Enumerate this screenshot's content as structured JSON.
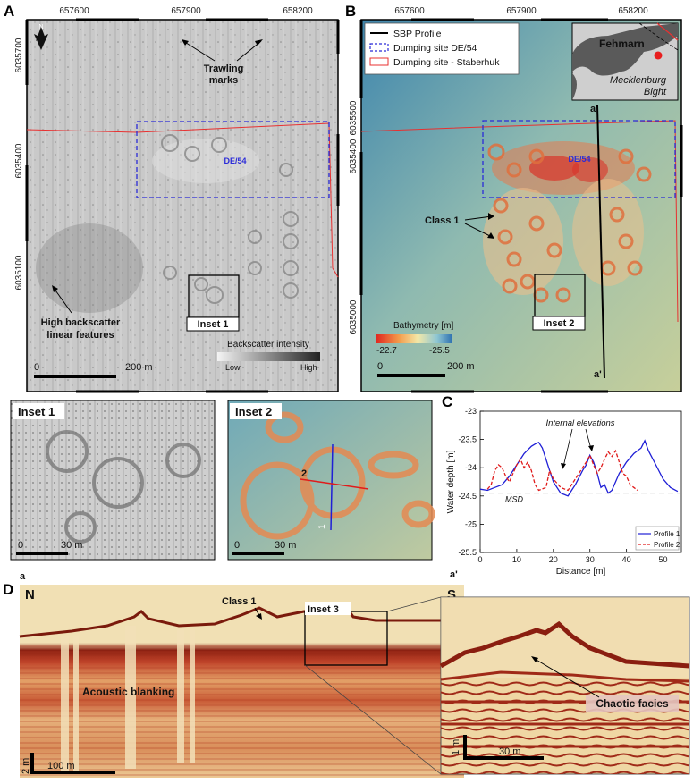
{
  "panels": {
    "A": {
      "label": "A",
      "x_ticks": [
        "657600",
        "657900",
        "658200"
      ],
      "y_ticks": [
        "6035700",
        "6035400",
        "6035100"
      ],
      "north": "N",
      "trawling": [
        "Trawling",
        "marks"
      ],
      "de54": "DE/54",
      "high_bs": [
        "High backscatter",
        "linear features"
      ],
      "inset": "Inset 1",
      "legend_title": "Backscatter intensity",
      "legend_low": "Low",
      "legend_high": "High",
      "scale_0": "0",
      "scale_end": "200 m"
    },
    "B": {
      "label": "B",
      "x_ticks": [
        "657600",
        "657900",
        "658200"
      ],
      "y_ticks": [
        "6035500",
        "6035400",
        "6035000"
      ],
      "legend": [
        "SBP Profile",
        "Dumping site DE/54",
        "Dumping site - Staberhuk"
      ],
      "map_labels": [
        "Fehmarn",
        "Mecklenburg",
        "Bight"
      ],
      "profile_a": "a",
      "profile_a2": "a'",
      "de54": "DE/54",
      "class1": "Class 1",
      "inset": "Inset 2",
      "bathy_title": "Bathymetry [m]",
      "bathy_min": "-22.7",
      "bathy_max": "-25.5",
      "scale_0": "0",
      "scale_end": "200 m"
    },
    "inset1": {
      "title": "Inset 1",
      "scale_0": "0",
      "scale_end": "30 m"
    },
    "inset2": {
      "title": "Inset 2",
      "scale_0": "0",
      "scale_end": "30 m",
      "p1": "1",
      "p2": "2"
    },
    "D": {
      "label": "D",
      "a": "a",
      "a2": "a'",
      "N": "N",
      "S": "S",
      "class1": "Class 1",
      "inset3": "Inset 3",
      "blanking": "Acoustic blanking",
      "chaotic": "Chaotic facies",
      "vscale": "2 m",
      "hscale": "100 m",
      "inset_vscale": "1 m",
      "inset_hscale": "30 m"
    }
  },
  "colors": {
    "profile1": "#1f1fd6",
    "profile2": "#e01b1b",
    "de54_box": "#2b2bd8",
    "staberhuk": "#e83030",
    "sbp_red": "#b8321a",
    "sbp_bg": "#efd9a8"
  },
  "chart_data": {
    "type": "line",
    "title": "",
    "panel_label": "C",
    "xlabel": "Distance [m]",
    "ylabel": "Water depth [m]",
    "xlim": [
      0,
      55
    ],
    "ylim": [
      -25.5,
      -23
    ],
    "xticks": [
      0,
      10,
      20,
      30,
      40,
      50
    ],
    "yticks": [
      -23,
      -23.5,
      -24,
      -24.5,
      -25,
      -25.5
    ],
    "ytick_labels": [
      "-23",
      "-23.5",
      "-24",
      "-24.5",
      "-25",
      "-25.5"
    ],
    "legend_position": "bottom-right",
    "msd": {
      "label": "MSD",
      "value": -24.45
    },
    "annotation": "Internal elevations",
    "series": [
      {
        "name": "Profile 1",
        "color": "#1f1fd6",
        "dash": "solid",
        "x": [
          0,
          2,
          4,
          6,
          8,
          10,
          12,
          14,
          15,
          16,
          17,
          18,
          19,
          20,
          22,
          24,
          26,
          28,
          29,
          30,
          31,
          32,
          33,
          34,
          35,
          36,
          38,
          40,
          42,
          44,
          45,
          46,
          48,
          50,
          52,
          54
        ],
        "y": [
          -24.38,
          -24.4,
          -24.35,
          -24.3,
          -24.15,
          -23.95,
          -23.75,
          -23.62,
          -23.58,
          -23.55,
          -23.65,
          -23.85,
          -24.05,
          -24.25,
          -24.45,
          -24.5,
          -24.3,
          -24.05,
          -23.95,
          -23.78,
          -23.9,
          -24.1,
          -24.35,
          -24.3,
          -24.45,
          -24.4,
          -24.1,
          -23.9,
          -23.75,
          -23.65,
          -23.52,
          -23.7,
          -23.95,
          -24.2,
          -24.35,
          -24.42
        ]
      },
      {
        "name": "Profile 2",
        "color": "#e01b1b",
        "dash": "dashed",
        "x": [
          2,
          3,
          4,
          5,
          6,
          7,
          8,
          10,
          11,
          12,
          13,
          14,
          15,
          16,
          18,
          19,
          20,
          22,
          24,
          26,
          28,
          29,
          30,
          31,
          32,
          33,
          34,
          35,
          36,
          37,
          38,
          39,
          40,
          41,
          42,
          43
        ],
        "y": [
          -24.38,
          -24.3,
          -24.05,
          -23.95,
          -24.0,
          -24.15,
          -24.25,
          -23.95,
          -23.85,
          -24.0,
          -23.9,
          -24.05,
          -24.3,
          -24.4,
          -24.35,
          -24.05,
          -24.2,
          -24.35,
          -24.4,
          -24.2,
          -24.0,
          -23.9,
          -23.78,
          -23.95,
          -24.1,
          -24.0,
          -23.85,
          -23.72,
          -23.8,
          -23.7,
          -23.9,
          -24.1,
          -24.15,
          -24.3,
          -24.35,
          -24.4
        ]
      }
    ]
  }
}
